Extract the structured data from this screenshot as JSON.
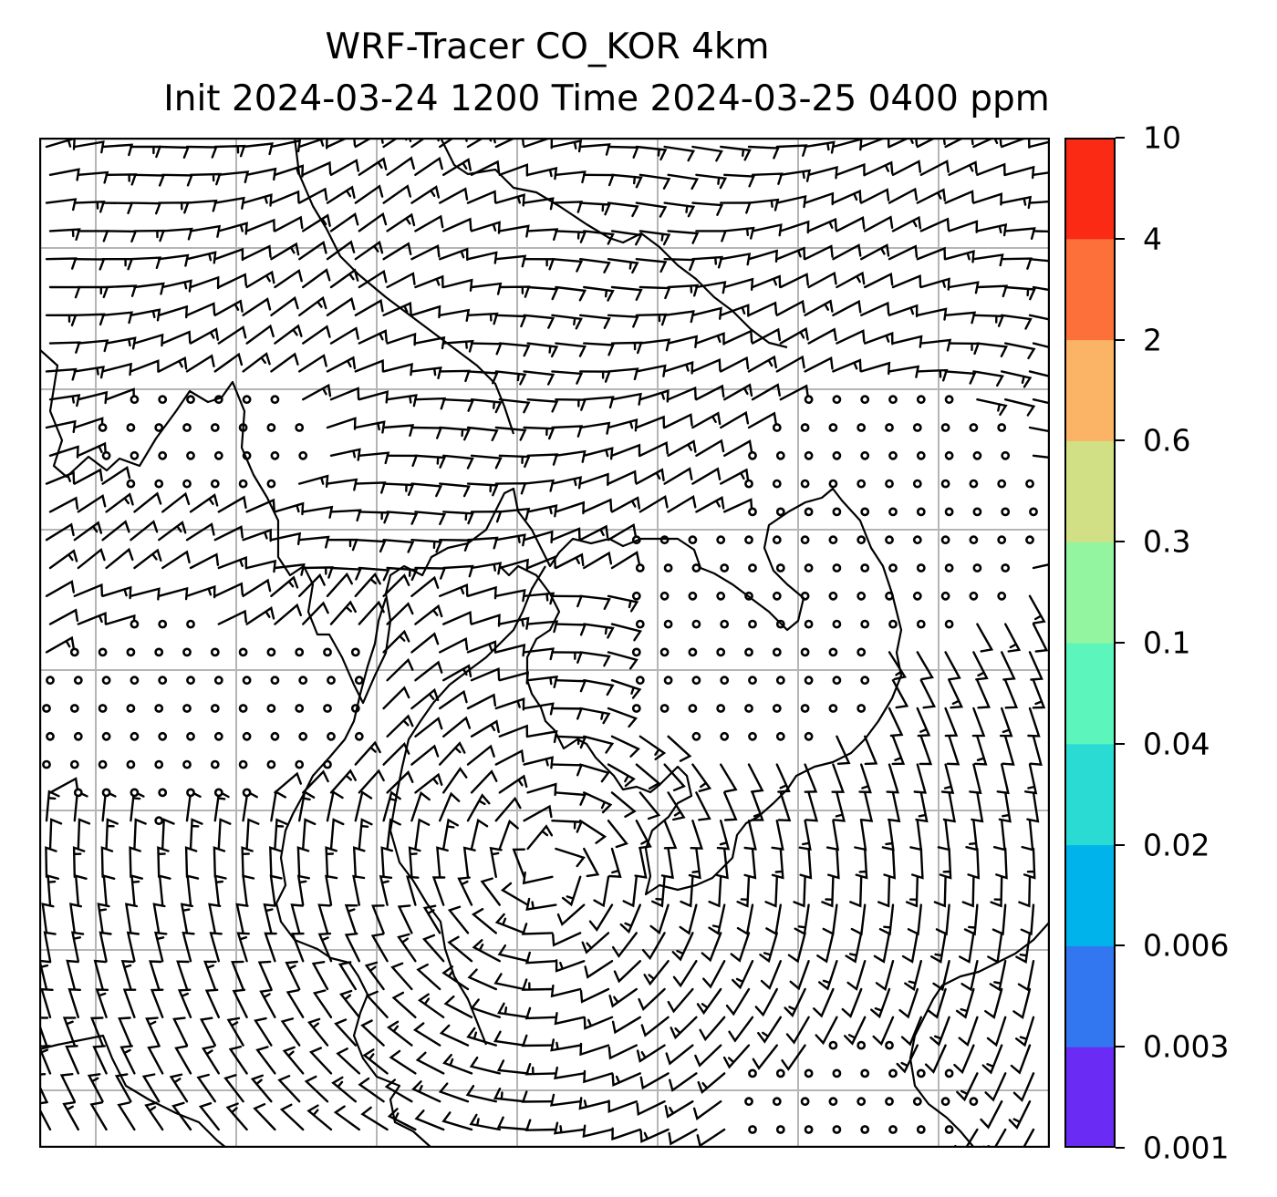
{
  "title": {
    "line1": "WRF-Tracer CO_KOR 4km",
    "line2": "Init 2024-03-24 1200 Time 2024-03-25 0400 ppm"
  },
  "map": {
    "content": "surface wind barbs over Korean peninsula region with coastlines, administrative boundaries and lat/lon grid",
    "grid_lines": true
  },
  "colorbar": {
    "levels": [
      "0.001",
      "0.003",
      "0.006",
      "0.02",
      "0.04",
      "0.1",
      "0.3",
      "0.6",
      "2",
      "4",
      "10"
    ],
    "colors": [
      "#6a2bf5",
      "#3377f0",
      "#00b3eb",
      "#29dbd3",
      "#5cf5bc",
      "#94f5a0",
      "#d1e084",
      "#fbb366",
      "#fd7039",
      "#fb2a15"
    ]
  }
}
